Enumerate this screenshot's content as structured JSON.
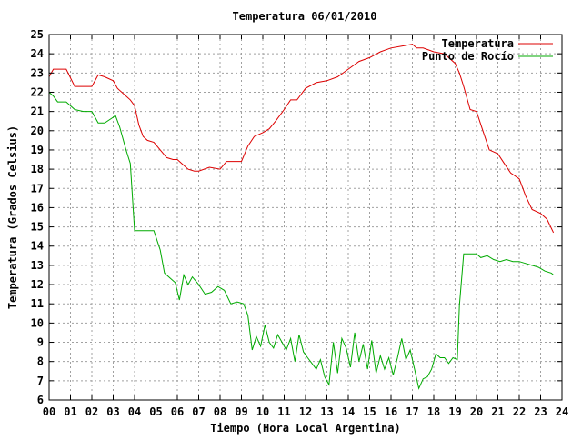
{
  "chart_data": {
    "type": "line",
    "title": "Temperatura 06/01/2010",
    "xlabel": "Tiempo (Hora Local Argentina)",
    "ylabel": "Temperatura (Grados Celsius)",
    "xlim": [
      0,
      24
    ],
    "ylim": [
      6,
      25
    ],
    "x_tick_labels": [
      "00",
      "01",
      "02",
      "03",
      "04",
      "05",
      "06",
      "07",
      "08",
      "09",
      "10",
      "11",
      "12",
      "13",
      "14",
      "15",
      "16",
      "17",
      "18",
      "19",
      "20",
      "21",
      "22",
      "23",
      "24"
    ],
    "y_tick_labels": [
      "6",
      "7",
      "8",
      "9",
      "10",
      "11",
      "12",
      "13",
      "14",
      "15",
      "16",
      "17",
      "18",
      "19",
      "20",
      "21",
      "22",
      "23",
      "24",
      "25"
    ],
    "grid": true,
    "legend_position": "top-right",
    "series": [
      {
        "name": "Temperatura",
        "color": "#dd0000",
        "x": [
          0.0,
          0.2,
          0.4,
          0.8,
          1.2,
          1.5,
          2.0,
          2.3,
          2.6,
          3.0,
          3.2,
          3.5,
          3.8,
          4.0,
          4.2,
          4.4,
          4.6,
          4.9,
          5.2,
          5.5,
          5.8,
          6.0,
          6.3,
          6.5,
          6.8,
          7.0,
          7.5,
          8.0,
          8.3,
          8.6,
          9.0,
          9.3,
          9.6,
          10.0,
          10.3,
          10.6,
          11.0,
          11.3,
          11.6,
          12.0,
          12.5,
          13.0,
          13.5,
          14.0,
          14.5,
          15.0,
          15.5,
          16.0,
          16.5,
          17.0,
          17.2,
          17.5,
          18.0,
          18.5,
          19.0,
          19.2,
          19.4,
          19.7,
          20.0,
          20.3,
          20.6,
          21.0,
          21.3,
          21.6,
          22.0,
          22.3,
          22.6,
          23.0,
          23.3,
          23.6
        ],
        "y": [
          22.8,
          23.2,
          23.2,
          23.2,
          22.3,
          22.3,
          22.3,
          22.9,
          22.8,
          22.6,
          22.2,
          21.9,
          21.6,
          21.3,
          20.3,
          19.7,
          19.5,
          19.4,
          19.0,
          18.6,
          18.5,
          18.5,
          18.2,
          18.0,
          17.9,
          17.9,
          18.1,
          18.0,
          18.4,
          18.4,
          18.4,
          19.2,
          19.7,
          19.9,
          20.1,
          20.5,
          21.1,
          21.6,
          21.6,
          22.2,
          22.5,
          22.6,
          22.8,
          23.2,
          23.6,
          23.8,
          24.1,
          24.3,
          24.4,
          24.5,
          24.3,
          24.3,
          24.1,
          24.0,
          23.5,
          23.0,
          22.3,
          21.1,
          21.0,
          20.0,
          19.0,
          18.8,
          18.3,
          17.8,
          17.5,
          16.6,
          15.9,
          15.7,
          15.4,
          14.7
        ]
      },
      {
        "name": "Punto de Rocío",
        "color": "#00aa00",
        "x": [
          0.0,
          0.2,
          0.4,
          0.8,
          1.2,
          1.6,
          2.0,
          2.3,
          2.6,
          3.0,
          3.1,
          3.3,
          3.6,
          3.8,
          4.0,
          4.1,
          4.3,
          4.6,
          4.9,
          5.2,
          5.4,
          5.6,
          5.9,
          6.1,
          6.3,
          6.5,
          6.7,
          7.0,
          7.3,
          7.6,
          7.9,
          8.2,
          8.5,
          8.8,
          9.1,
          9.3,
          9.5,
          9.7,
          9.9,
          10.1,
          10.3,
          10.5,
          10.7,
          10.9,
          11.1,
          11.3,
          11.5,
          11.7,
          11.9,
          12.1,
          12.3,
          12.5,
          12.7,
          12.9,
          13.1,
          13.3,
          13.5,
          13.7,
          13.9,
          14.1,
          14.3,
          14.5,
          14.7,
          14.9,
          15.1,
          15.3,
          15.5,
          15.7,
          15.9,
          16.1,
          16.3,
          16.5,
          16.7,
          16.9,
          17.1,
          17.3,
          17.5,
          17.7,
          17.9,
          18.1,
          18.3,
          18.5,
          18.7,
          18.9,
          19.1,
          19.2,
          19.4,
          19.6,
          19.8,
          20.0,
          20.2,
          20.5,
          20.8,
          21.1,
          21.4,
          21.7,
          22.0,
          22.3,
          22.6,
          22.9,
          23.2,
          23.5,
          23.6
        ],
        "y": [
          22.0,
          21.8,
          21.5,
          21.5,
          21.1,
          21.0,
          21.0,
          20.4,
          20.4,
          20.7,
          20.8,
          20.2,
          19.0,
          18.3,
          14.8,
          14.8,
          14.8,
          14.8,
          14.8,
          13.8,
          12.6,
          12.4,
          12.1,
          11.2,
          12.5,
          12.0,
          12.4,
          12.0,
          11.5,
          11.6,
          11.9,
          11.7,
          11.0,
          11.1,
          11.0,
          10.4,
          8.6,
          9.3,
          8.8,
          9.9,
          9.0,
          8.7,
          9.4,
          9.0,
          8.6,
          9.2,
          8.0,
          9.4,
          8.5,
          8.2,
          7.9,
          7.6,
          8.1,
          7.2,
          6.8,
          9.0,
          7.4,
          9.2,
          8.7,
          7.7,
          9.5,
          8.0,
          8.9,
          7.6,
          9.1,
          7.4,
          8.3,
          7.6,
          8.2,
          7.3,
          8.2,
          9.2,
          8.1,
          8.6,
          7.6,
          6.6,
          7.1,
          7.2,
          7.6,
          8.4,
          8.2,
          8.2,
          7.9,
          8.2,
          8.1,
          10.9,
          13.6,
          13.6,
          13.6,
          13.6,
          13.4,
          13.5,
          13.3,
          13.2,
          13.3,
          13.2,
          13.2,
          13.1,
          13.0,
          12.9,
          12.7,
          12.6,
          12.5
        ]
      }
    ]
  }
}
